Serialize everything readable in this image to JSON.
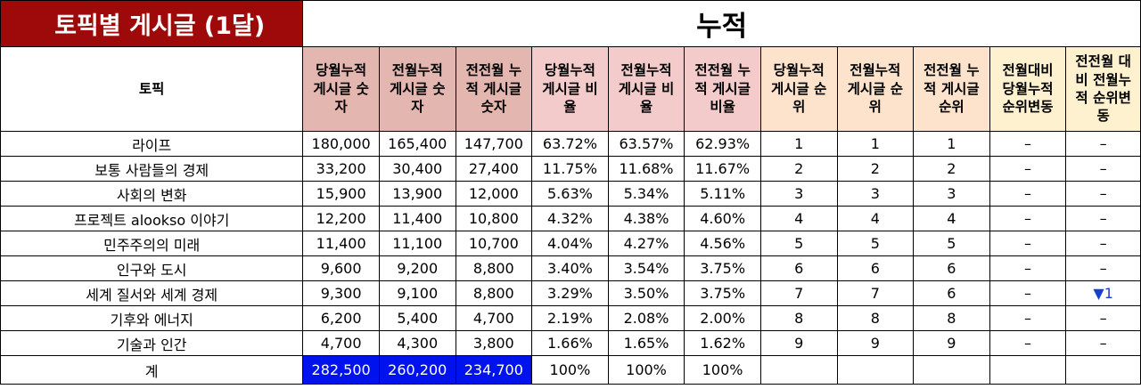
{
  "title": "토픽별 게시글 (1달)",
  "group_label": "누적",
  "columns": {
    "topic": "토픽",
    "headers": [
      "당월누적\n게시글 숫\n자",
      "전월누적\n게시글 숫\n자",
      "전전월 누\n적 게시글\n숫자",
      "당월누적\n게시글 비\n율",
      "전월누적\n게시글 비\n율",
      "전전월 누\n적 게시글\n비율",
      "당월누적\n게시글 순\n위",
      "전월누적\n게시글 순\n위",
      "전전월 누\n적 게시글\n순위",
      "전월대비\n당월누적\n순위변동",
      "전전월 대\n비 전월누\n적 순위변\n동"
    ]
  },
  "rows": [
    {
      "topic": "라이프",
      "cur": "180,000",
      "prev": "165,400",
      "prev2": "147,700",
      "cur_ratio": "63.72%",
      "prev_ratio": "63.57%",
      "prev2_ratio": "62.93%",
      "cur_rank": "1",
      "prev_rank": "1",
      "prev2_rank": "1",
      "chg1": "–",
      "chg2": "–"
    },
    {
      "topic": "보통 사람들의 경제",
      "cur": "33,200",
      "prev": "30,400",
      "prev2": "27,400",
      "cur_ratio": "11.75%",
      "prev_ratio": "11.68%",
      "prev2_ratio": "11.67%",
      "cur_rank": "2",
      "prev_rank": "2",
      "prev2_rank": "2",
      "chg1": "–",
      "chg2": "–"
    },
    {
      "topic": "사회의 변화",
      "cur": "15,900",
      "prev": "13,900",
      "prev2": "12,000",
      "cur_ratio": "5.63%",
      "prev_ratio": "5.34%",
      "prev2_ratio": "5.11%",
      "cur_rank": "3",
      "prev_rank": "3",
      "prev2_rank": "3",
      "chg1": "–",
      "chg2": "–"
    },
    {
      "topic": "프로젝트 alookso 이야기",
      "cur": "12,200",
      "prev": "11,400",
      "prev2": "10,800",
      "cur_ratio": "4.32%",
      "prev_ratio": "4.38%",
      "prev2_ratio": "4.60%",
      "cur_rank": "4",
      "prev_rank": "4",
      "prev2_rank": "4",
      "chg1": "–",
      "chg2": "–"
    },
    {
      "topic": "민주주의의 미래",
      "cur": "11,400",
      "prev": "11,100",
      "prev2": "10,700",
      "cur_ratio": "4.04%",
      "prev_ratio": "4.27%",
      "prev2_ratio": "4.56%",
      "cur_rank": "5",
      "prev_rank": "5",
      "prev2_rank": "5",
      "chg1": "–",
      "chg2": "–"
    },
    {
      "topic": "인구와 도시",
      "cur": "9,600",
      "prev": "9,200",
      "prev2": "8,800",
      "cur_ratio": "3.40%",
      "prev_ratio": "3.54%",
      "prev2_ratio": "3.75%",
      "cur_rank": "6",
      "prev_rank": "6",
      "prev2_rank": "6",
      "chg1": "–",
      "chg2": "–"
    },
    {
      "topic": "세계 질서와 세계 경제",
      "cur": "9,300",
      "prev": "9,100",
      "prev2": "8,800",
      "cur_ratio": "3.29%",
      "prev_ratio": "3.50%",
      "prev2_ratio": "3.75%",
      "cur_rank": "7",
      "prev_rank": "7",
      "prev2_rank": "6",
      "chg1": "–",
      "chg2": "▼1"
    },
    {
      "topic": "기후와 에너지",
      "cur": "6,200",
      "prev": "5,400",
      "prev2": "4,700",
      "cur_ratio": "2.19%",
      "prev_ratio": "2.08%",
      "prev2_ratio": "2.00%",
      "cur_rank": "8",
      "prev_rank": "8",
      "prev2_rank": "8",
      "chg1": "–",
      "chg2": "–"
    },
    {
      "topic": "기술과 인간",
      "cur": "4,700",
      "prev": "4,300",
      "prev2": "3,800",
      "cur_ratio": "1.66%",
      "prev_ratio": "1.65%",
      "prev2_ratio": "1.62%",
      "cur_rank": "9",
      "prev_rank": "9",
      "prev2_rank": "9",
      "chg1": "–",
      "chg2": "–"
    }
  ],
  "total": {
    "label": "계",
    "cur": "282,500",
    "prev": "260,200",
    "prev2": "234,700",
    "cur_ratio": "100%",
    "prev_ratio": "100%",
    "prev2_ratio": "100%"
  },
  "colors": {
    "title_bg": "#9e0a0a",
    "count_header": "#e4b6b0",
    "ratio_header": "#f4cbcb",
    "rank_header": "#fde3cc",
    "change_header": "#fdf1cf",
    "total_highlight": "#0013ee",
    "down_arrow": "#1a3fcf"
  }
}
